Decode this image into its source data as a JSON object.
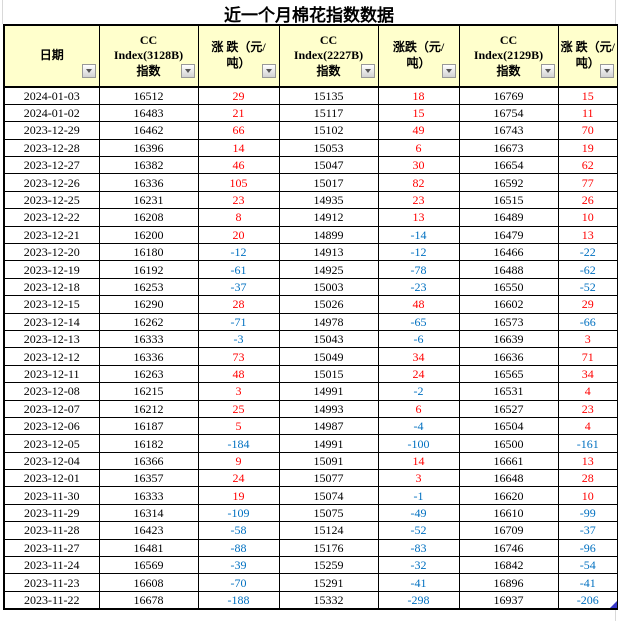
{
  "title": "近一个月棉花指数数据",
  "colors": {
    "positive": "#ff0000",
    "negative": "#0070c0",
    "header_bg": "#ffffcc",
    "grid_border": "#000000",
    "corner_marker": "#3a3ac8"
  },
  "table": {
    "columns": [
      {
        "label": "日期",
        "kind": "date"
      },
      {
        "label": "CC\nIndex(3128B)\n指数",
        "kind": "value"
      },
      {
        "label": "涨 跌（元/\n吨）",
        "kind": "change"
      },
      {
        "label": "CC\nIndex(2227B)\n指数",
        "kind": "value"
      },
      {
        "label": "涨跌（元/\n吨）",
        "kind": "change"
      },
      {
        "label": "CC\nIndex(2129B)\n指数",
        "kind": "value"
      },
      {
        "label": "涨 跌（元/\n吨）",
        "kind": "change"
      }
    ],
    "rows": [
      [
        "2024-01-03",
        16512,
        29,
        15135,
        18,
        16769,
        15
      ],
      [
        "2024-01-02",
        16483,
        21,
        15117,
        15,
        16754,
        11
      ],
      [
        "2023-12-29",
        16462,
        66,
        15102,
        49,
        16743,
        70
      ],
      [
        "2023-12-28",
        16396,
        14,
        15053,
        6,
        16673,
        19
      ],
      [
        "2023-12-27",
        16382,
        46,
        15047,
        30,
        16654,
        62
      ],
      [
        "2023-12-26",
        16336,
        105,
        15017,
        82,
        16592,
        77
      ],
      [
        "2023-12-25",
        16231,
        23,
        14935,
        23,
        16515,
        26
      ],
      [
        "2023-12-22",
        16208,
        8,
        14912,
        13,
        16489,
        10
      ],
      [
        "2023-12-21",
        16200,
        20,
        14899,
        -14,
        16479,
        13
      ],
      [
        "2023-12-20",
        16180,
        -12,
        14913,
        -12,
        16466,
        -22
      ],
      [
        "2023-12-19",
        16192,
        -61,
        14925,
        -78,
        16488,
        -62
      ],
      [
        "2023-12-18",
        16253,
        -37,
        15003,
        -23,
        16550,
        -52
      ],
      [
        "2023-12-15",
        16290,
        28,
        15026,
        48,
        16602,
        29
      ],
      [
        "2023-12-14",
        16262,
        -71,
        14978,
        -65,
        16573,
        -66
      ],
      [
        "2023-12-13",
        16333,
        -3,
        15043,
        -6,
        16639,
        3
      ],
      [
        "2023-12-12",
        16336,
        73,
        15049,
        34,
        16636,
        71
      ],
      [
        "2023-12-11",
        16263,
        48,
        15015,
        24,
        16565,
        34
      ],
      [
        "2023-12-08",
        16215,
        3,
        14991,
        -2,
        16531,
        4
      ],
      [
        "2023-12-07",
        16212,
        25,
        14993,
        6,
        16527,
        23
      ],
      [
        "2023-12-06",
        16187,
        5,
        14987,
        -4,
        16504,
        4
      ],
      [
        "2023-12-05",
        16182,
        -184,
        14991,
        -100,
        16500,
        -161
      ],
      [
        "2023-12-04",
        16366,
        9,
        15091,
        14,
        16661,
        13
      ],
      [
        "2023-12-01",
        16357,
        24,
        15077,
        3,
        16648,
        28
      ],
      [
        "2023-11-30",
        16333,
        19,
        15074,
        -1,
        16620,
        10
      ],
      [
        "2023-11-29",
        16314,
        -109,
        15075,
        -49,
        16610,
        -99
      ],
      [
        "2023-11-28",
        16423,
        -58,
        15124,
        -52,
        16709,
        -37
      ],
      [
        "2023-11-27",
        16481,
        -88,
        15176,
        -83,
        16746,
        -96
      ],
      [
        "2023-11-24",
        16569,
        -39,
        15259,
        -32,
        16842,
        -54
      ],
      [
        "2023-11-23",
        16608,
        -70,
        15291,
        -41,
        16896,
        -41
      ],
      [
        "2023-11-22",
        16678,
        -188,
        15332,
        -298,
        16937,
        -206
      ]
    ]
  }
}
